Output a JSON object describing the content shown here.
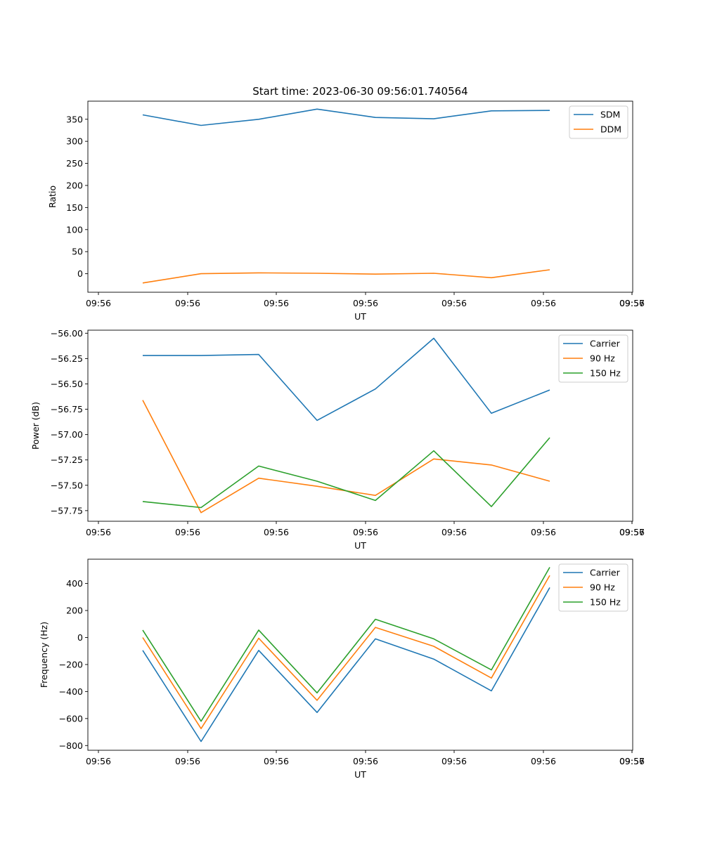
{
  "chart_data": [
    {
      "type": "line",
      "title": "Start time: 2023-06-30 09:56:01.740564",
      "xlabel": "UT",
      "ylabel": "Ratio",
      "x_tick_labels": [
        "09:56",
        "09:56",
        "09:56",
        "09:56",
        "09:56",
        "09:56",
        "09:56",
        "09:57"
      ],
      "y_ticks": [
        0,
        50,
        100,
        150,
        200,
        250,
        300,
        350
      ],
      "y_tick_labels": [
        "0",
        "50",
        "100",
        "150",
        "200",
        "250",
        "300",
        "350"
      ],
      "ylim": [
        -42,
        391
      ],
      "legend": "top-right",
      "grid": false,
      "series": [
        {
          "name": "SDM",
          "color": "#1f77b4",
          "values": [
            360,
            336,
            350,
            373,
            354,
            351,
            369,
            370
          ]
        },
        {
          "name": "DDM",
          "color": "#ff7f0e",
          "values": [
            -21,
            0,
            2,
            1,
            -1,
            1,
            -9,
            9
          ]
        }
      ]
    },
    {
      "type": "line",
      "title": "",
      "xlabel": "UT",
      "ylabel": "Power (dB)",
      "x_tick_labels": [
        "09:56",
        "09:56",
        "09:56",
        "09:56",
        "09:56",
        "09:56",
        "09:56",
        "09:57"
      ],
      "y_ticks": [
        -57.75,
        -57.5,
        -57.25,
        -57.0,
        -56.75,
        -56.5,
        -56.25,
        -56.0
      ],
      "y_tick_labels": [
        "−57.75",
        "−57.50",
        "−57.25",
        "−57.00",
        "−56.75",
        "−56.50",
        "−56.25",
        "−56.00"
      ],
      "ylim": [
        -57.855,
        -55.97
      ],
      "legend": "top-right",
      "grid": false,
      "series": [
        {
          "name": "Carrier",
          "color": "#1f77b4",
          "values": [
            -56.22,
            -56.22,
            -56.21,
            -56.86,
            -56.55,
            -56.05,
            -56.79,
            -56.56
          ]
        },
        {
          "name": "90 Hz",
          "color": "#ff7f0e",
          "values": [
            -56.66,
            -57.77,
            -57.43,
            -57.51,
            -57.6,
            -57.24,
            -57.3,
            -57.46
          ]
        },
        {
          "name": "150 Hz",
          "color": "#2ca02c",
          "values": [
            -57.66,
            -57.72,
            -57.31,
            -57.46,
            -57.65,
            -57.16,
            -57.71,
            -57.03
          ]
        }
      ]
    },
    {
      "type": "line",
      "title": "",
      "xlabel": "UT",
      "ylabel": "Frequency (Hz)",
      "x_tick_labels": [
        "09:56",
        "09:56",
        "09:56",
        "09:56",
        "09:56",
        "09:56",
        "09:56",
        "09:57"
      ],
      "y_ticks": [
        -800,
        -600,
        -400,
        -200,
        0,
        200,
        400
      ],
      "y_tick_labels": [
        "−800",
        "−600",
        "−400",
        "−200",
        "0",
        "200",
        "400"
      ],
      "ylim": [
        -835,
        580
      ],
      "legend": "top-right",
      "grid": false,
      "series": [
        {
          "name": "Carrier",
          "color": "#1f77b4",
          "values": [
            -95,
            -770,
            -95,
            -555,
            -10,
            -160,
            -395,
            370
          ]
        },
        {
          "name": "90 Hz",
          "color": "#ff7f0e",
          "values": [
            0,
            -675,
            -5,
            -465,
            75,
            -65,
            -300,
            460
          ]
        },
        {
          "name": "150 Hz",
          "color": "#2ca02c",
          "values": [
            55,
            -620,
            55,
            -410,
            135,
            -10,
            -240,
            520
          ]
        }
      ]
    }
  ]
}
